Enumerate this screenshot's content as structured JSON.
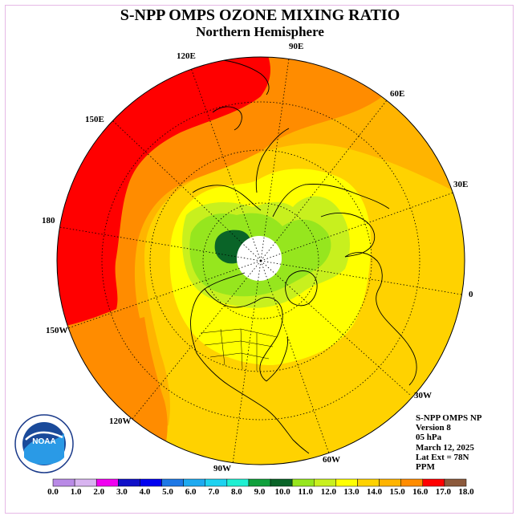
{
  "header": {
    "title": "S-NPP OMPS OZONE MIXING RATIO",
    "subtitle": "Northern Hemisphere"
  },
  "map": {
    "longitude_labels": [
      {
        "text": "90E"
      },
      {
        "text": "60E"
      },
      {
        "text": "30E"
      },
      {
        "text": "0"
      },
      {
        "text": "30W"
      },
      {
        "text": "60W"
      },
      {
        "text": "90W"
      },
      {
        "text": "120W"
      },
      {
        "text": "150W"
      },
      {
        "text": "180"
      },
      {
        "text": "150E"
      },
      {
        "text": "120E"
      }
    ]
  },
  "info": {
    "product": "S-NPP OMPS NP",
    "version": "Version 8",
    "level": "05 hPa",
    "date": "March 12, 2025",
    "lat_ext": "Lat Ext = 78N",
    "units": "PPM"
  },
  "colorbar": {
    "labels": [
      "0.0",
      "1.0",
      "2.0",
      "3.0",
      "4.0",
      "5.0",
      "6.0",
      "7.0",
      "8.0",
      "9.0",
      "10.0",
      "11.0",
      "12.0",
      "13.0",
      "14.0",
      "15.0",
      "16.0",
      "17.0",
      "18.0"
    ],
    "colors": [
      "#b98ae6",
      "#d8b4f0",
      "#f000f0",
      "#1010c8",
      "#0000f0",
      "#1e78e6",
      "#1eaaf0",
      "#1ed2f0",
      "#20f0d2",
      "#10a03c",
      "#0a6428",
      "#96e61e",
      "#c8f01e",
      "#ffff00",
      "#ffd200",
      "#ffb400",
      "#ff8c00",
      "#ff0000",
      "#8c5a3c"
    ]
  },
  "logo": {
    "text": "NOAA"
  }
}
